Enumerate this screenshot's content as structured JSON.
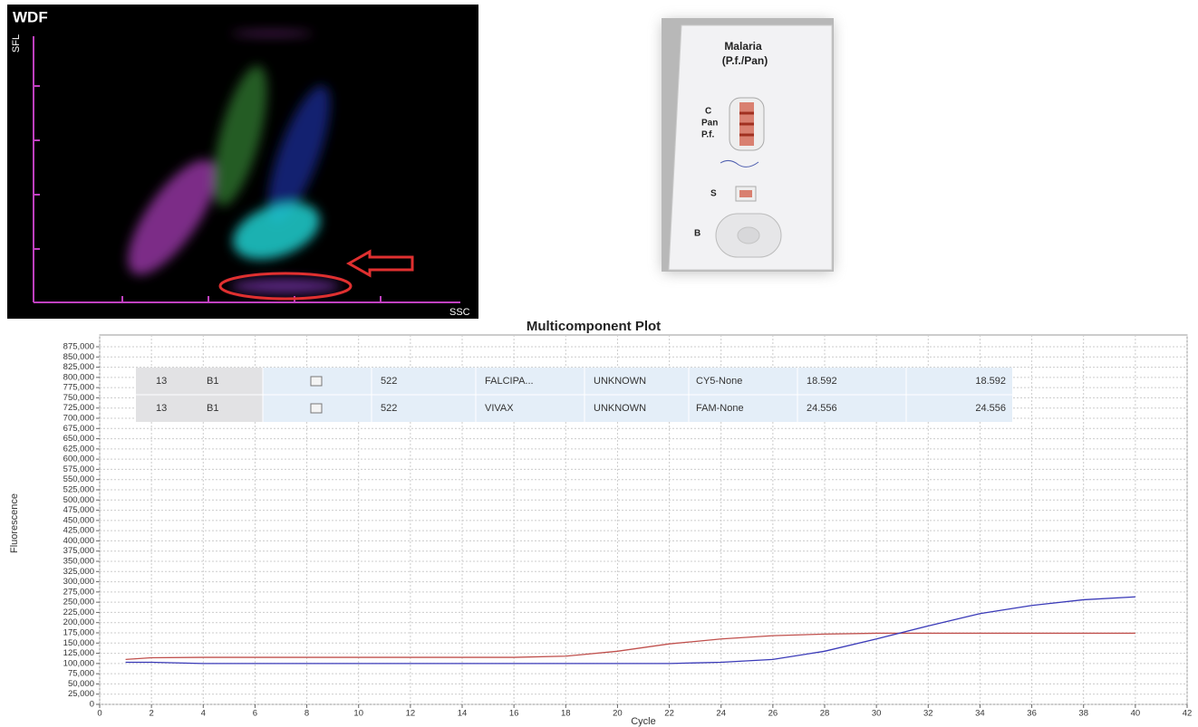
{
  "scatter_panel": {
    "title": "WDF",
    "y_label": "SFL",
    "x_label": "SSC"
  },
  "test_photo": {
    "title_line1": "Malaria",
    "title_line2": "(P.f./Pan)",
    "band_c": "C",
    "band_pan": "Pan",
    "band_pf": "P.f.",
    "well_s": "S",
    "well_b": "B"
  },
  "table": {
    "rows": [
      [
        "13",
        "B1",
        "522",
        "FALCIPA...",
        "UNKNOWN",
        "CY5-None",
        "18.592",
        "18.592"
      ],
      [
        "13",
        "B1",
        "522",
        "VIVAX",
        "UNKNOWN",
        "FAM-None",
        "24.556",
        "24.556"
      ]
    ]
  },
  "chart_data": {
    "type": "line",
    "title": "Multicomponent Plot",
    "x_label": "Cycle",
    "y_label": "Fluorescence",
    "x": [
      1,
      2,
      4,
      6,
      8,
      10,
      12,
      14,
      16,
      18,
      20,
      22,
      24,
      26,
      28,
      30,
      32,
      34,
      36,
      38,
      40
    ],
    "series": [
      {
        "color": "#c0504d",
        "values": [
          110000,
          114000,
          115000,
          115000,
          115000,
          115000,
          115000,
          115000,
          115000,
          118000,
          130000,
          148000,
          160000,
          168000,
          172000,
          174000,
          174000,
          174000,
          174000,
          174000,
          174000
        ]
      },
      {
        "color": "#3a3ab8",
        "values": [
          103000,
          103000,
          100000,
          100000,
          100000,
          100000,
          100000,
          100000,
          100000,
          100000,
          100000,
          100000,
          103000,
          110000,
          130000,
          160000,
          192000,
          222000,
          242000,
          256000,
          263000
        ]
      }
    ],
    "xlim": [
      0,
      42
    ],
    "xticks": [
      0,
      2,
      4,
      6,
      8,
      10,
      12,
      14,
      16,
      18,
      20,
      22,
      24,
      26,
      28,
      30,
      32,
      34,
      36,
      38,
      40,
      42
    ],
    "ylim": [
      0,
      875000
    ],
    "yticks": [
      {
        "value": 0,
        "label": "0"
      },
      {
        "value": 25000,
        "label": "25,000"
      },
      {
        "value": 50000,
        "label": "50,000"
      },
      {
        "value": 75000,
        "label": "75,000"
      },
      {
        "value": 100000,
        "label": "100,000"
      },
      {
        "value": 125000,
        "label": "125,000"
      },
      {
        "value": 150000,
        "label": "150,000"
      },
      {
        "value": 175000,
        "label": "175,000"
      },
      {
        "value": 200000,
        "label": "200,000"
      },
      {
        "value": 225000,
        "label": "225,000"
      },
      {
        "value": 250000,
        "label": "250,000"
      },
      {
        "value": 275000,
        "label": "275,000"
      },
      {
        "value": 300000,
        "label": "300,000"
      },
      {
        "value": 325000,
        "label": "325,000"
      },
      {
        "value": 350000,
        "label": "350,000"
      },
      {
        "value": 375000,
        "label": "375,000"
      },
      {
        "value": 400000,
        "label": "400,000"
      },
      {
        "value": 425000,
        "label": "425,000"
      },
      {
        "value": 450000,
        "label": "450,000"
      },
      {
        "value": 475000,
        "label": "475,000"
      },
      {
        "value": 500000,
        "label": "500,000"
      },
      {
        "value": 525000,
        "label": "525,000"
      },
      {
        "value": 550000,
        "label": "550,000"
      },
      {
        "value": 575000,
        "label": "575,000"
      },
      {
        "value": 600000,
        "label": "600,000"
      },
      {
        "value": 625000,
        "label": "625,000"
      },
      {
        "value": 650000,
        "label": "650,000"
      },
      {
        "value": 675000,
        "label": "675,000"
      },
      {
        "value": 700000,
        "label": "700,000"
      },
      {
        "value": 725000,
        "label": "725,000"
      },
      {
        "value": 750000,
        "label": "750,000"
      },
      {
        "value": 775000,
        "label": "775,000"
      },
      {
        "value": 800000,
        "label": "800,000"
      },
      {
        "value": 825000,
        "label": "825,000"
      },
      {
        "value": 850000,
        "label": "850,000"
      },
      {
        "value": 875000,
        "label": "875,000"
      }
    ],
    "grid": true
  }
}
